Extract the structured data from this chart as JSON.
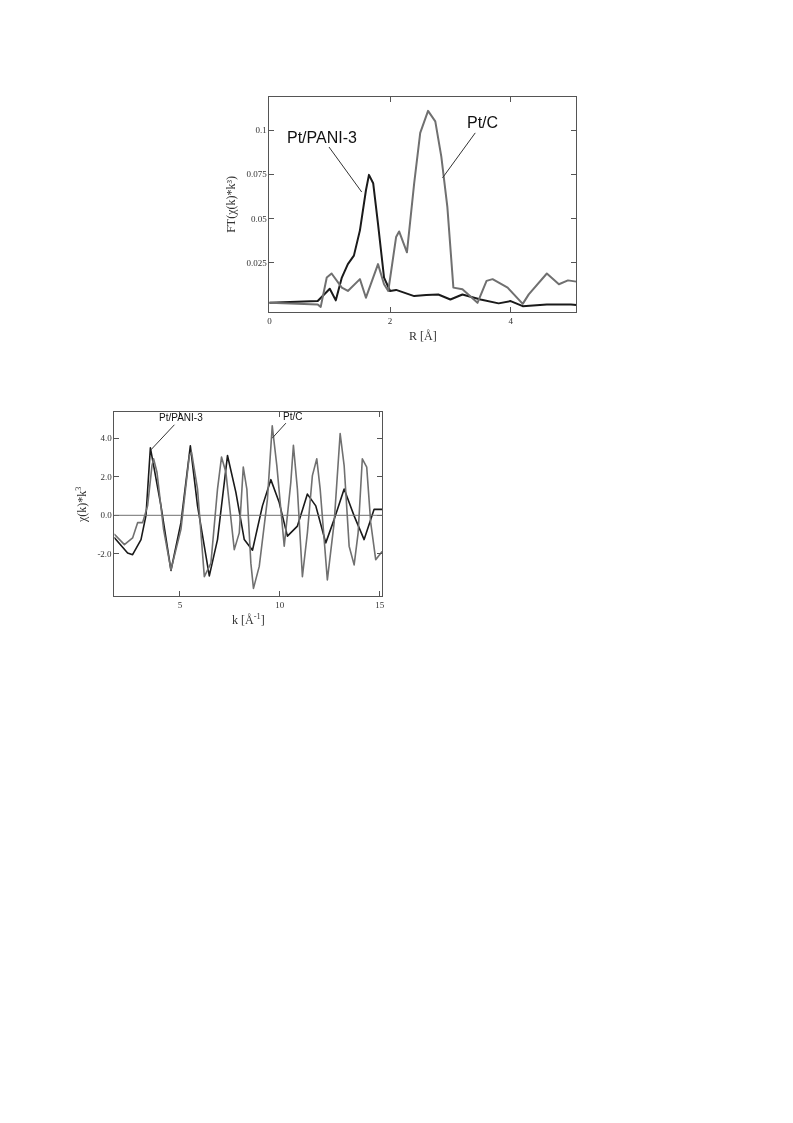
{
  "chart_data": [
    {
      "type": "line",
      "xlabel": "R [Å]",
      "ylabel": "FT(χ(k)*k³)",
      "xlim": [
        0,
        5.09
      ],
      "xticks": [
        0,
        2,
        4
      ],
      "ylim": [
        -0.003,
        0.119
      ],
      "yticks": [
        0.025,
        0.05,
        0.075,
        {
          "value": 0.1,
          "label": "0.1"
        }
      ],
      "annotations": [
        {
          "text": "Pt/PANI-3",
          "x": 1.53,
          "y": 0.065
        },
        {
          "text": "Pt/C",
          "x": 2.87,
          "y": 0.073
        }
      ],
      "series": [
        {
          "color": "#1a1a1a",
          "x": [
            0,
            0.8,
            1.0,
            1.1,
            1.2,
            1.3,
            1.4,
            1.5,
            1.6,
            1.65,
            1.72,
            1.8,
            1.9,
            2.0,
            2.1,
            2.4,
            2.6,
            2.8,
            3.0,
            3.2,
            3.5,
            3.8,
            4.0,
            4.2,
            4.6,
            5.0,
            5.09
          ],
          "values": [
            0.0023,
            0.0033,
            0.0103,
            0.0037,
            0.0166,
            0.0242,
            0.029,
            0.0433,
            0.066,
            0.0747,
            0.07,
            0.047,
            0.0166,
            0.009,
            0.0096,
            0.0061,
            0.0067,
            0.007,
            0.0042,
            0.007,
            0.0042,
            0.002,
            0.0033,
            0.0004,
            0.0014,
            0.0014,
            0.0011
          ]
        },
        {
          "color": "#707070",
          "x": [
            0,
            0.8,
            0.85,
            0.95,
            1.03,
            1.2,
            1.3,
            1.5,
            1.6,
            1.8,
            1.9,
            1.97,
            2.1,
            2.15,
            2.28,
            2.4,
            2.5,
            2.63,
            2.75,
            2.85,
            2.95,
            3.05,
            3.2,
            3.45,
            3.6,
            3.7,
            3.95,
            4.2,
            4.3,
            4.6,
            4.8,
            4.95,
            5.09
          ],
          "values": [
            0.0023,
            0.0014,
            0.0,
            0.0166,
            0.0189,
            0.0109,
            0.009,
            0.0157,
            0.0052,
            0.0242,
            0.0128,
            0.009,
            0.0395,
            0.0427,
            0.0309,
            0.07,
            0.0985,
            0.1109,
            0.105,
            0.085,
            0.0566,
            0.0109,
            0.01,
            0.0023,
            0.0147,
            0.0157,
            0.0109,
            0.0017,
            0.0071,
            0.0189,
            0.0128,
            0.015,
            0.0143
          ]
        }
      ]
    },
    {
      "type": "line",
      "xlabel": "k [Å$^{-1}$]",
      "ylabel": "χ(k)*k$^{3}$",
      "xlim": [
        1.72,
        15.13
      ],
      "xticks": [
        5,
        10,
        15
      ],
      "ylim": [
        -4.2,
        5.35
      ],
      "yticks": [
        {
          "value": -2,
          "label": "-2.0"
        },
        {
          "value": 0,
          "label": "0.0"
        },
        {
          "value": 2,
          "label": "2.0"
        },
        {
          "value": 4,
          "label": "4.0"
        }
      ],
      "ref_lines": [
        {
          "axis": "y",
          "value": 0,
          "color": "#707070"
        }
      ],
      "annotations": [
        {
          "text": "Pt/PANI-3",
          "x": 3.55,
          "y": 3.4
        },
        {
          "text": "Pt/C",
          "x": 9.62,
          "y": 4.0
        }
      ],
      "series": [
        {
          "color": "#1a1a1a",
          "x": [
            1.72,
            2.38,
            2.63,
            3.05,
            3.3,
            3.52,
            4.05,
            4.55,
            5.05,
            5.52,
            5.88,
            6.47,
            6.88,
            7.38,
            7.8,
            8.22,
            8.63,
            9.13,
            9.55,
            9.97,
            10.38,
            10.88,
            11.38,
            11.8,
            12.3,
            12.72,
            13.22,
            13.72,
            14.22,
            14.72,
            15.13
          ],
          "values": [
            -1.17,
            -1.95,
            -2.04,
            -1.26,
            0,
            3.5,
            0.49,
            -2.86,
            -0.38,
            3.6,
            0.49,
            -3.14,
            -1.26,
            3.1,
            1.19,
            -1.26,
            -1.81,
            0.49,
            1.85,
            0.66,
            -1.08,
            -0.56,
            1.1,
            0.49,
            -1.43,
            -0.21,
            1.36,
            -0.03,
            -1.26,
            0.31,
            0.31
          ]
        },
        {
          "color": "#707070",
          "x": [
            1.72,
            2.22,
            2.63,
            2.88,
            3.13,
            3.38,
            3.6,
            3.68,
            3.85,
            4.18,
            4.55,
            5.05,
            5.47,
            5.58,
            5.88,
            6.22,
            6.55,
            6.88,
            7.08,
            7.3,
            7.72,
            7.97,
            8.17,
            8.35,
            8.55,
            8.68,
            8.97,
            9.38,
            9.62,
            9.85,
            10.22,
            10.55,
            10.68,
            10.88,
            11.13,
            11.38,
            11.63,
            11.85,
            12.02,
            12.38,
            12.72,
            13.02,
            13.22,
            13.47,
            13.72,
            13.92,
            14.13,
            14.35,
            14.55,
            14.8,
            15.1
          ],
          "values": [
            -0.99,
            -1.52,
            -1.17,
            -0.38,
            -0.38,
            0.49,
            2.58,
            2.93,
            2.23,
            -0.73,
            -2.83,
            -0.73,
            3.1,
            3.28,
            1.36,
            -3.18,
            -2.48,
            1.36,
            3.02,
            2.23,
            -1.78,
            -0.91,
            2.5,
            1.36,
            -2.48,
            -3.79,
            -2.65,
            0.84,
            4.64,
            2.58,
            -1.6,
            1.71,
            3.63,
            1.36,
            -3.18,
            -0.91,
            2.06,
            2.93,
            1.36,
            -3.35,
            -0.38,
            4.24,
            2.58,
            -1.6,
            -2.57,
            -0.91,
            2.93,
            2.5,
            -0.38,
            -2.3,
            -1.9
          ]
        }
      ]
    }
  ]
}
